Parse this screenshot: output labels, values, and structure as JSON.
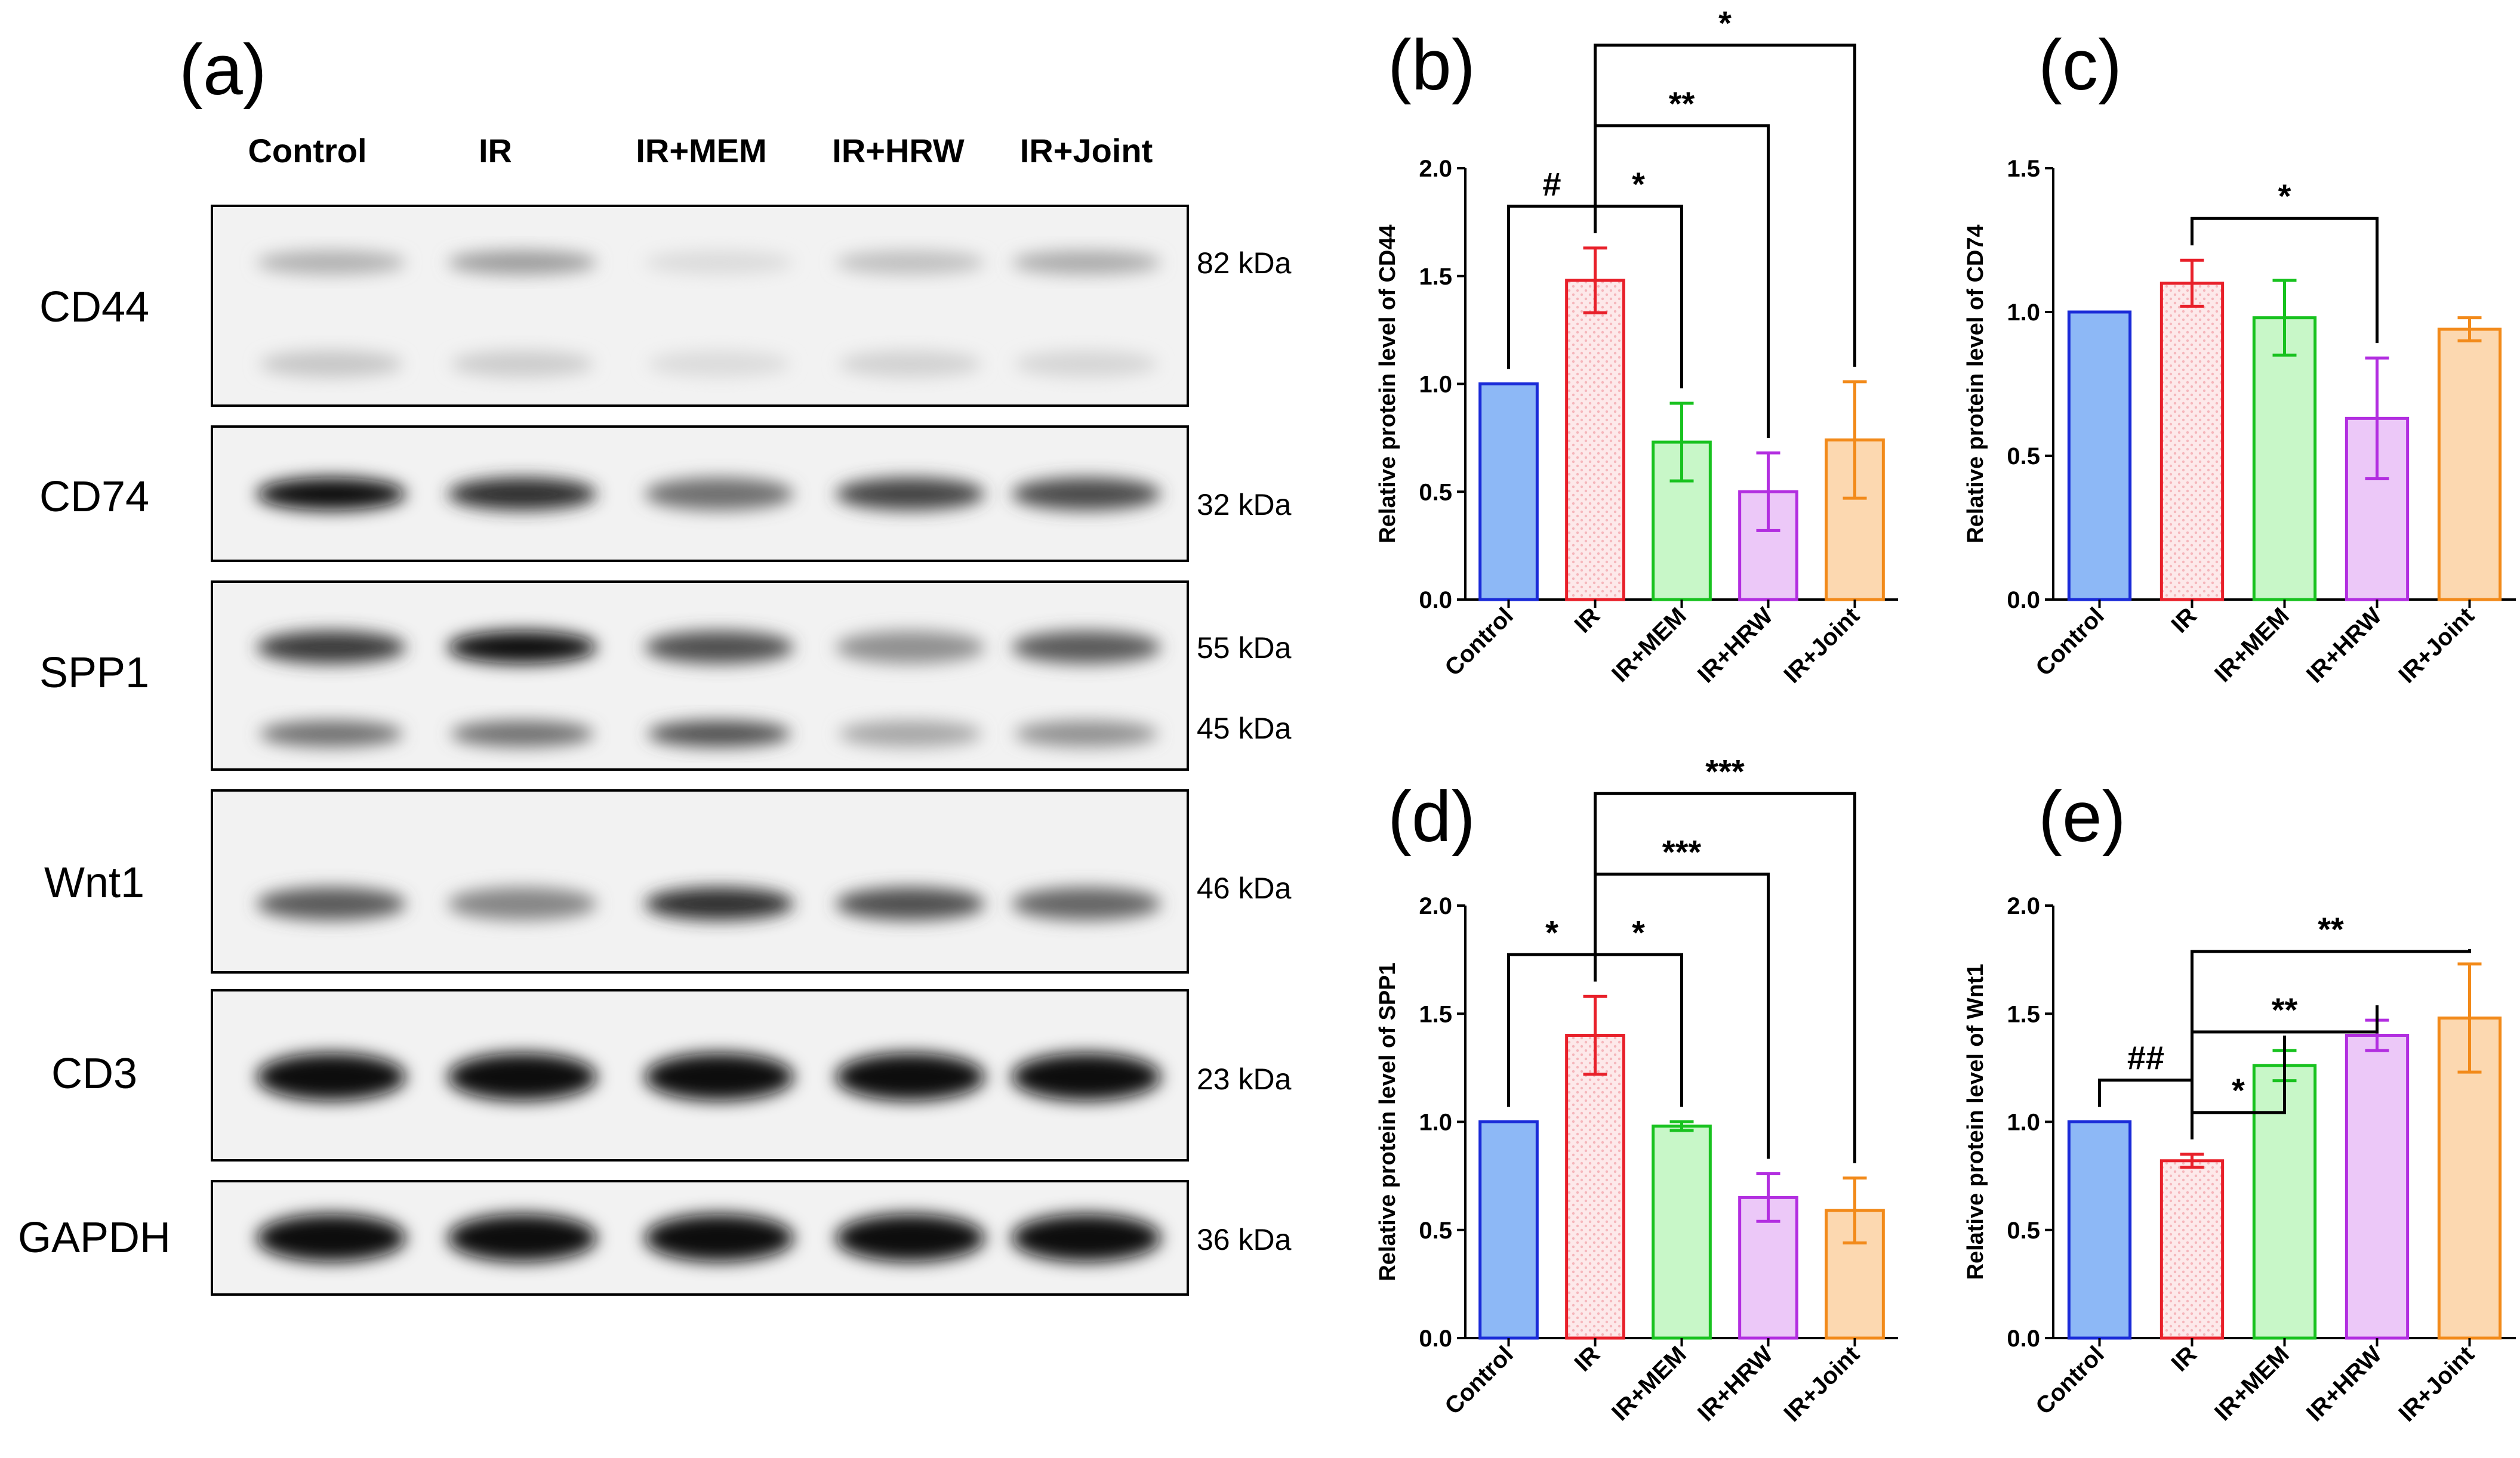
{
  "blot": {
    "label": "(a)",
    "lanes": [
      "Control",
      "IR",
      "IR+MEM",
      "IR+HRW",
      "IR+Joint"
    ],
    "rows": [
      {
        "protein": "CD44",
        "kda": [
          "82 kDa"
        ],
        "intensity": [
          0.25,
          0.35,
          0.05,
          0.18,
          0.28
        ],
        "lower": [
          0.15,
          0.12,
          0.05,
          0.1,
          0.08
        ]
      },
      {
        "protein": "CD74",
        "kda": [
          "32 kDa"
        ],
        "intensity": [
          1.0,
          0.85,
          0.55,
          0.75,
          0.72
        ]
      },
      {
        "protein": "SPP1",
        "kda": [
          "55 kDa",
          "45 kDa"
        ],
        "intensity": [
          0.8,
          1.0,
          0.7,
          0.4,
          0.65
        ],
        "lower": [
          0.55,
          0.55,
          0.7,
          0.3,
          0.4
        ]
      },
      {
        "protein": "Wnt1",
        "kda": [
          "46 kDa"
        ],
        "intensity": [
          0.65,
          0.45,
          0.85,
          0.7,
          0.6
        ]
      },
      {
        "protein": "CD3",
        "kda": [
          "23 kDa"
        ],
        "intensity": [
          1.0,
          1.0,
          1.0,
          1.0,
          1.0
        ]
      },
      {
        "protein": "GAPDH",
        "kda": [
          "36 kDa"
        ],
        "intensity": [
          1.0,
          1.0,
          1.0,
          1.0,
          1.0
        ]
      }
    ]
  },
  "colors": {
    "Control": {
      "stroke": "#1a2bd8",
      "fill": "#8db8f6"
    },
    "IR": {
      "stroke": "#e8202a",
      "fill": "#fbe3e4"
    },
    "IR+MEM": {
      "stroke": "#18c21f",
      "fill": "#c8f7c8"
    },
    "IR+HRW": {
      "stroke": "#b22ee0",
      "fill": "#ecc8f8"
    },
    "IR+Joint": {
      "stroke": "#f28a1a",
      "fill": "#fcd8b0"
    }
  },
  "chart_data": [
    {
      "panel": "(b)",
      "type": "bar",
      "categories": [
        "Control",
        "IR",
        "IR+MEM",
        "IR+HRW",
        "IR+Joint"
      ],
      "values": [
        1.0,
        1.48,
        0.73,
        0.5,
        0.74
      ],
      "errors": [
        0,
        0.15,
        0.18,
        0.18,
        0.27
      ],
      "ylabel": "Relative protein level of CD44",
      "ylim": [
        0,
        2.0
      ],
      "yticks": [
        "0.0",
        "0.5",
        "1.0",
        "1.5",
        "2.0"
      ],
      "comparisons": [
        {
          "from": 0,
          "to": 1,
          "label": "#"
        },
        {
          "from": 1,
          "to": 2,
          "label": "*"
        },
        {
          "from": 1,
          "to": 3,
          "label": "**"
        },
        {
          "from": 1,
          "to": 4,
          "label": "*"
        }
      ]
    },
    {
      "panel": "(c)",
      "type": "bar",
      "categories": [
        "Control",
        "IR",
        "IR+MEM",
        "IR+HRW",
        "IR+Joint"
      ],
      "values": [
        1.0,
        1.1,
        0.98,
        0.63,
        0.94
      ],
      "errors": [
        0,
        0.08,
        0.13,
        0.21,
        0.04
      ],
      "ylabel": "Relative protein level of CD74",
      "ylim": [
        0,
        1.5
      ],
      "yticks": [
        "0.0",
        "0.5",
        "1.0",
        "1.5"
      ],
      "comparisons": [
        {
          "from": 1,
          "to": 3,
          "label": "*"
        }
      ]
    },
    {
      "panel": "(d)",
      "type": "bar",
      "categories": [
        "Control",
        "IR",
        "IR+MEM",
        "IR+HRW",
        "IR+Joint"
      ],
      "values": [
        1.0,
        1.4,
        0.98,
        0.65,
        0.59
      ],
      "errors": [
        0,
        0.18,
        0.02,
        0.11,
        0.15
      ],
      "ylabel": "Relative protein level of SPP1",
      "ylim": [
        0,
        2.0
      ],
      "yticks": [
        "0.0",
        "0.5",
        "1.0",
        "1.5",
        "2.0"
      ],
      "comparisons": [
        {
          "from": 0,
          "to": 1,
          "label": "*"
        },
        {
          "from": 1,
          "to": 2,
          "label": "*"
        },
        {
          "from": 1,
          "to": 3,
          "label": "***"
        },
        {
          "from": 1,
          "to": 4,
          "label": "***"
        }
      ]
    },
    {
      "panel": "(e)",
      "type": "bar",
      "categories": [
        "Control",
        "IR",
        "IR+MEM",
        "IR+HRW",
        "IR+Joint"
      ],
      "values": [
        1.0,
        0.82,
        1.26,
        1.4,
        1.48
      ],
      "errors": [
        0,
        0.03,
        0.07,
        0.07,
        0.25
      ],
      "ylabel": "Relative protein level of Wnt1",
      "ylim": [
        0,
        2.0
      ],
      "yticks": [
        "0.0",
        "0.5",
        "1.0",
        "1.5",
        "2.0"
      ],
      "comparisons": [
        {
          "from": 0,
          "to": 1,
          "label": "##"
        },
        {
          "from": 1,
          "to": 2,
          "label": "*"
        },
        {
          "from": 1,
          "to": 3,
          "label": "**"
        },
        {
          "from": 1,
          "to": 4,
          "label": "**"
        }
      ]
    }
  ]
}
